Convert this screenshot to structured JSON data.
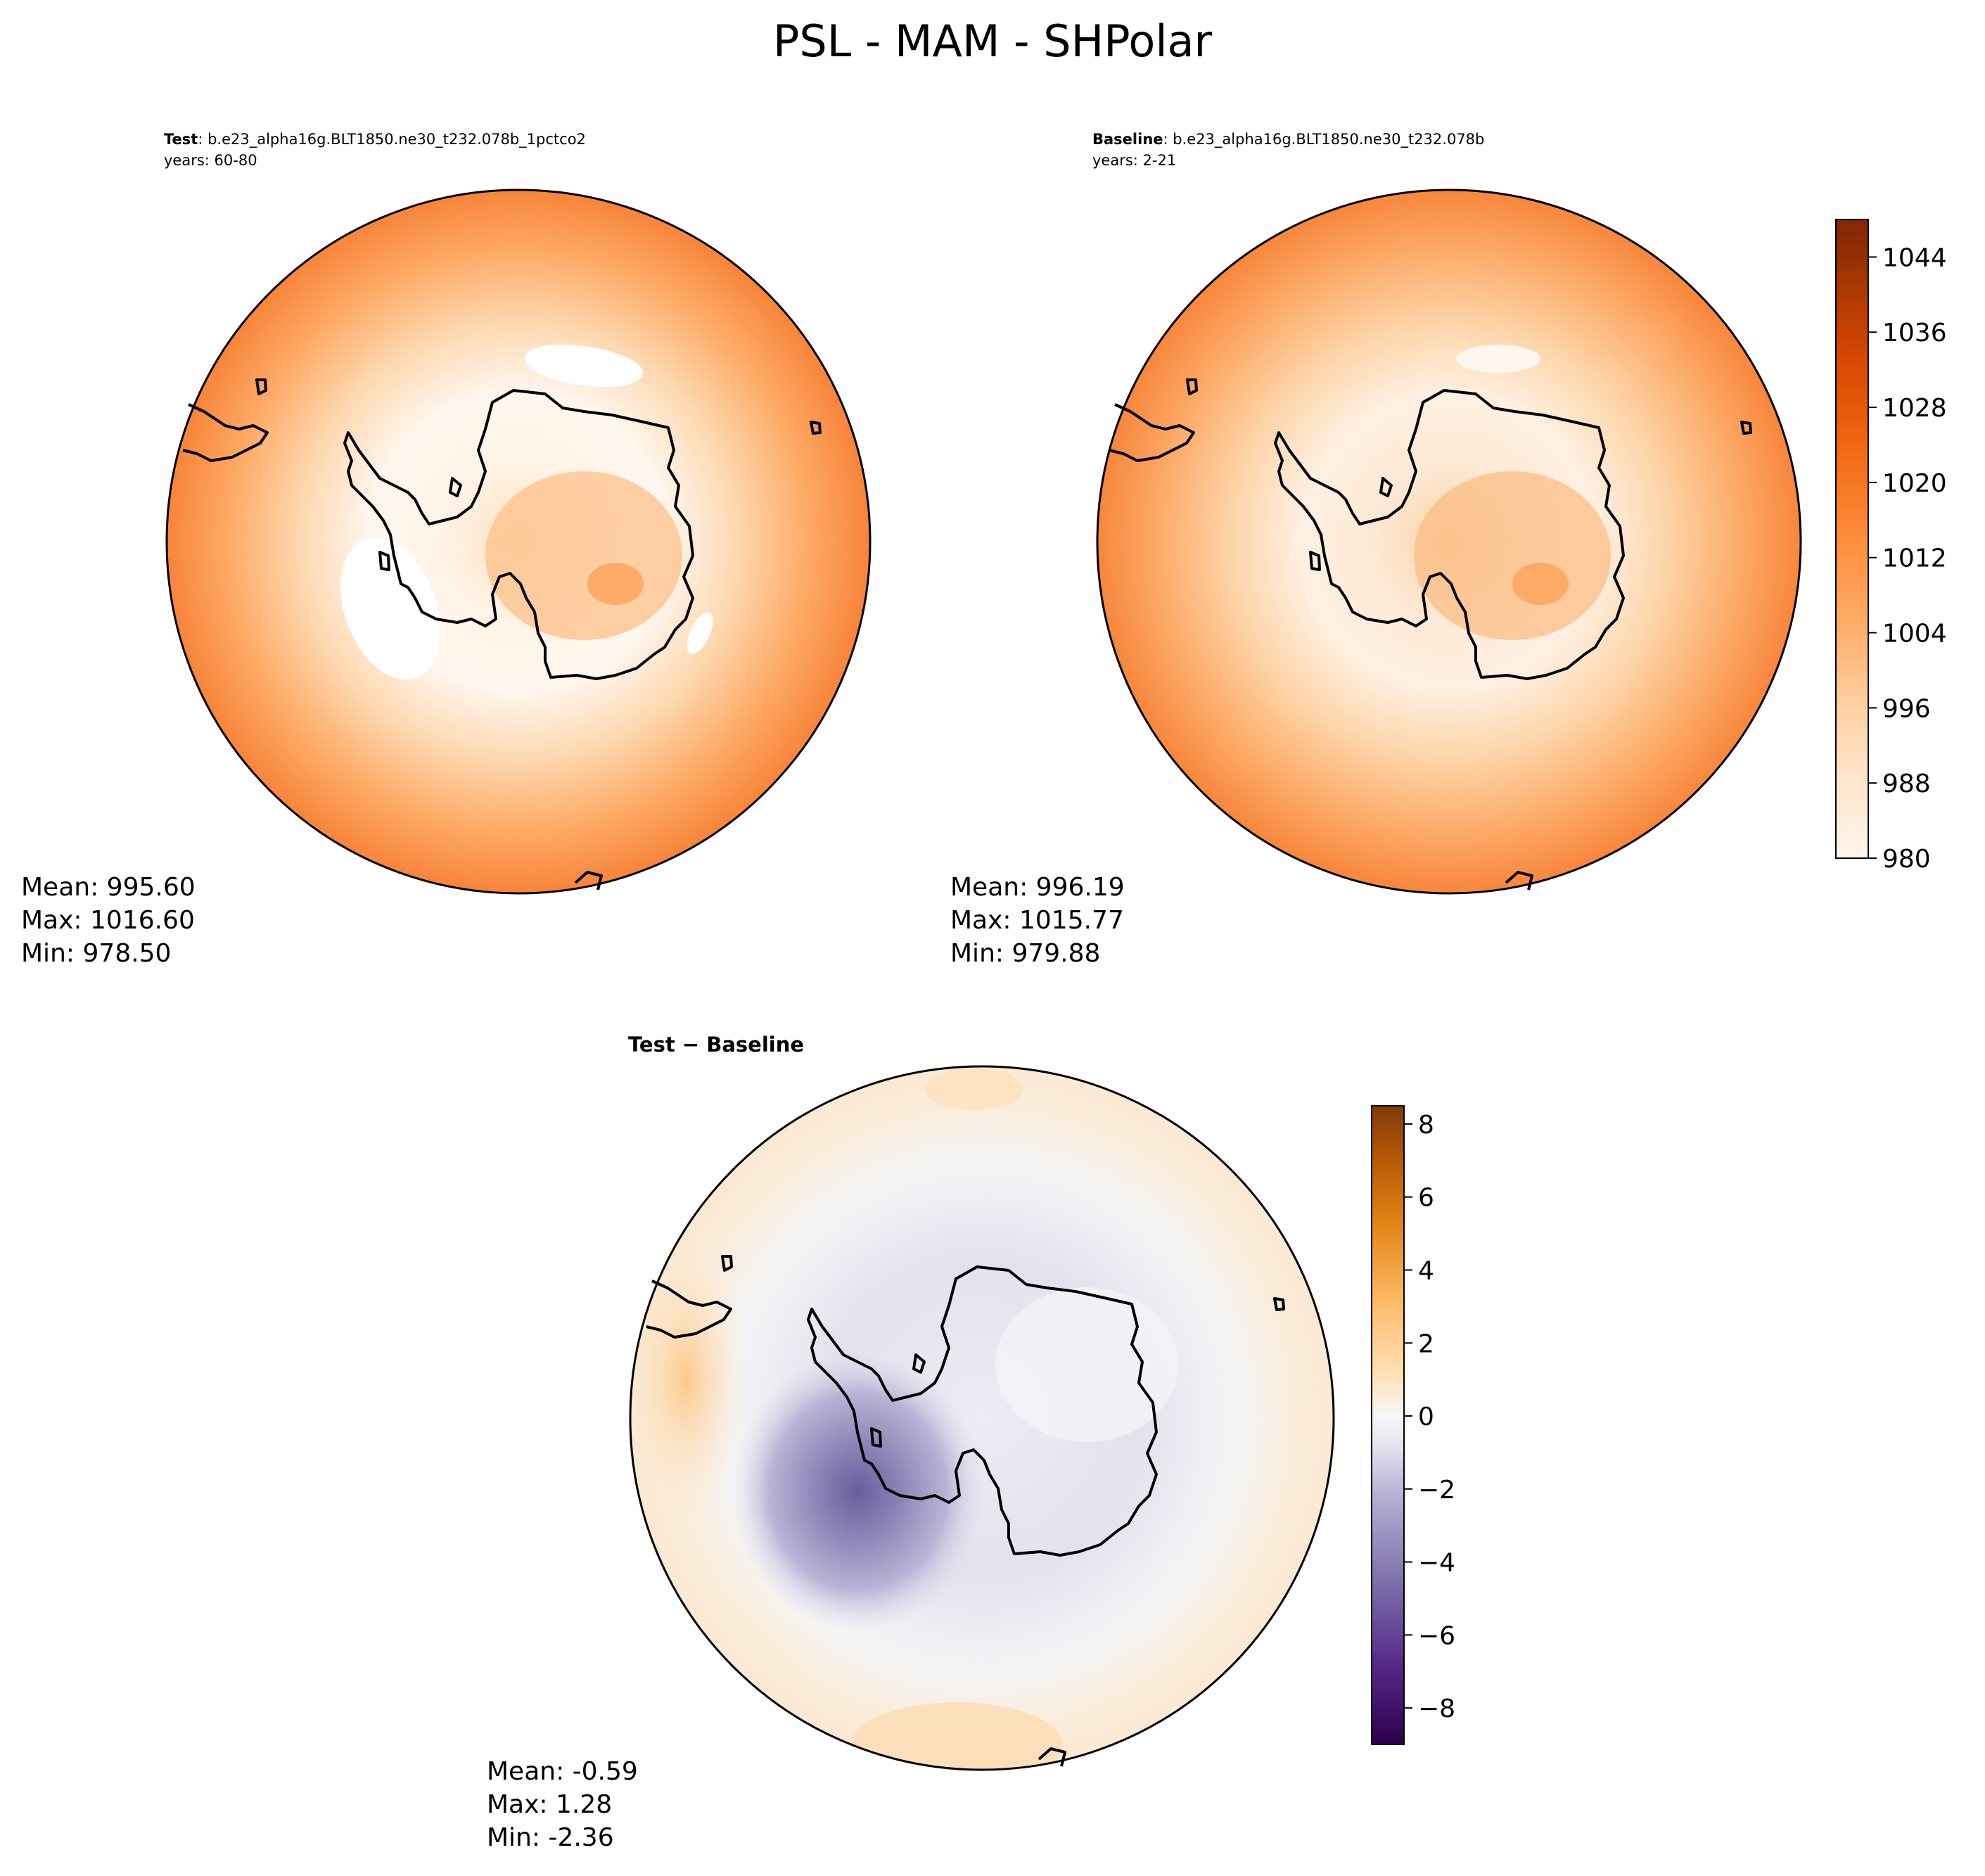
{
  "figure": {
    "title": "PSL - MAM - SHPolar"
  },
  "panels": [
    {
      "id": "test",
      "label_bold": "Test",
      "label_rest": ": b.e23_alpha16g.BLT1850.ne30_t232.078b_1pctco2",
      "years": "years: 60-80",
      "stats": [
        "Mean: 995.60",
        "Max: 1016.60",
        "Min: 978.50"
      ]
    },
    {
      "id": "baseline",
      "label_bold": "Baseline",
      "label_rest": ": b.e23_alpha16g.BLT1850.ne30_t232.078b",
      "years": "years: 2-21",
      "stats": [
        "Mean: 996.19",
        "Max: 1015.77",
        "Min: 979.88"
      ]
    },
    {
      "id": "diff",
      "label_bold": "Test − Baseline",
      "label_rest": "",
      "years": "",
      "stats": [
        "Mean: -0.59",
        "Max:  1.28",
        "Min: -2.36"
      ]
    }
  ],
  "chart_data": [
    {
      "type": "heatmap",
      "name": "test",
      "title": "Test : b.e23_alpha16g.BLT1850.ne30_t232.078b_1pctco2",
      "subtitle": "years: 60-80",
      "projection": "south-polar-stereographic",
      "field": "PSL (sea level pressure, hPa)",
      "summary": {
        "mean": 995.6,
        "max": 1016.6,
        "min": 978.5
      },
      "pattern": "low pressure ring (~980-990) around Antarctica, higher toward the outer edge (~1010-1016), moderate over the continent (~1000-1008)"
    },
    {
      "type": "heatmap",
      "name": "baseline",
      "title": "Baseline : b.e23_alpha16g.BLT1850.ne30_t232.078b",
      "subtitle": "years: 2-21",
      "projection": "south-polar-stereographic",
      "field": "PSL (sea level pressure, hPa)",
      "summary": {
        "mean": 996.19,
        "max": 1015.77,
        "min": 979.88
      },
      "colorbar": {
        "range": [
          980,
          1048
        ],
        "levels_step": 4,
        "ticks": [
          980,
          988,
          996,
          1004,
          1012,
          1020,
          1028,
          1036,
          1044
        ],
        "colors": [
          "#fff5eb",
          "#fee6ce",
          "#fdd0a2",
          "#fdae6b",
          "#fd8d3c",
          "#f16913",
          "#d94801",
          "#a63603",
          "#7f2704"
        ]
      }
    },
    {
      "type": "heatmap",
      "name": "difference",
      "title": "Test − Baseline",
      "projection": "south-polar-stereographic",
      "field": "PSL difference (hPa)",
      "summary": {
        "mean": -0.59,
        "max": 1.28,
        "min": -2.36
      },
      "colorbar": {
        "range": [
          -9,
          8.5
        ],
        "levels_step": 0.5,
        "ticks": [
          -8,
          -6,
          -4,
          -2,
          0,
          2,
          4,
          6,
          8
        ],
        "tick_labels": [
          "−8",
          "−6",
          "−4",
          "−2",
          "0",
          "2",
          "4",
          "6",
          "8"
        ],
        "colors_negative": [
          "#2d004b",
          "#542788",
          "#8073ac",
          "#b2abd2",
          "#d8daeb",
          "#f7f7f7"
        ],
        "colors_positive": [
          "#f7f7f7",
          "#fee0b6",
          "#fdb863",
          "#e08214",
          "#b35806",
          "#7f3b08"
        ]
      },
      "pattern": "negative anomaly (~-6) west of the Antarctic Peninsula, weak negative over most of the continent and ring, weak positive (~1-3) in the outer belt"
    }
  ]
}
